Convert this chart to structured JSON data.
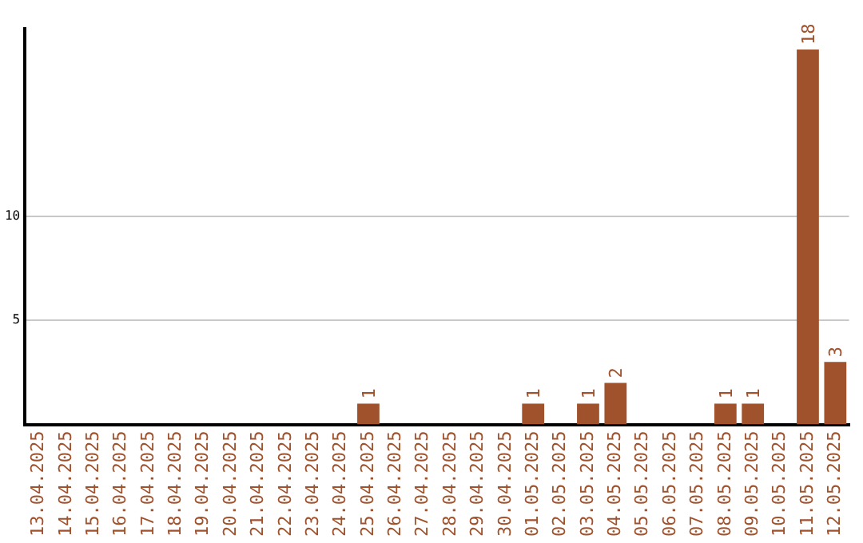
{
  "chart_data": {
    "type": "bar",
    "categories": [
      "13.04.2025",
      "14.04.2025",
      "15.04.2025",
      "16.04.2025",
      "17.04.2025",
      "18.04.2025",
      "19.04.2025",
      "20.04.2025",
      "21.04.2025",
      "22.04.2025",
      "23.04.2025",
      "24.04.2025",
      "25.04.2025",
      "26.04.2025",
      "27.04.2025",
      "28.04.2025",
      "29.04.2025",
      "30.04.2025",
      "01.05.2025",
      "02.05.2025",
      "03.05.2025",
      "04.05.2025",
      "05.05.2025",
      "06.05.2025",
      "07.05.2025",
      "08.05.2025",
      "09.05.2025",
      "10.05.2025",
      "11.05.2025",
      "12.05.2025"
    ],
    "values": [
      null,
      null,
      null,
      null,
      null,
      null,
      null,
      null,
      null,
      null,
      null,
      null,
      1,
      null,
      null,
      null,
      null,
      null,
      1,
      null,
      1,
      2,
      null,
      null,
      null,
      1,
      1,
      null,
      18,
      3
    ],
    "value_labels": [
      null,
      null,
      null,
      null,
      null,
      null,
      null,
      null,
      null,
      null,
      null,
      null,
      "1",
      null,
      null,
      null,
      null,
      null,
      "1",
      null,
      "1",
      "2",
      null,
      null,
      null,
      "1",
      "1",
      null,
      "18",
      "3"
    ],
    "color": "#a0522d",
    "ylim": [
      0,
      19
    ],
    "yticks": [
      5,
      10
    ],
    "grid": "y",
    "legend": false
  }
}
